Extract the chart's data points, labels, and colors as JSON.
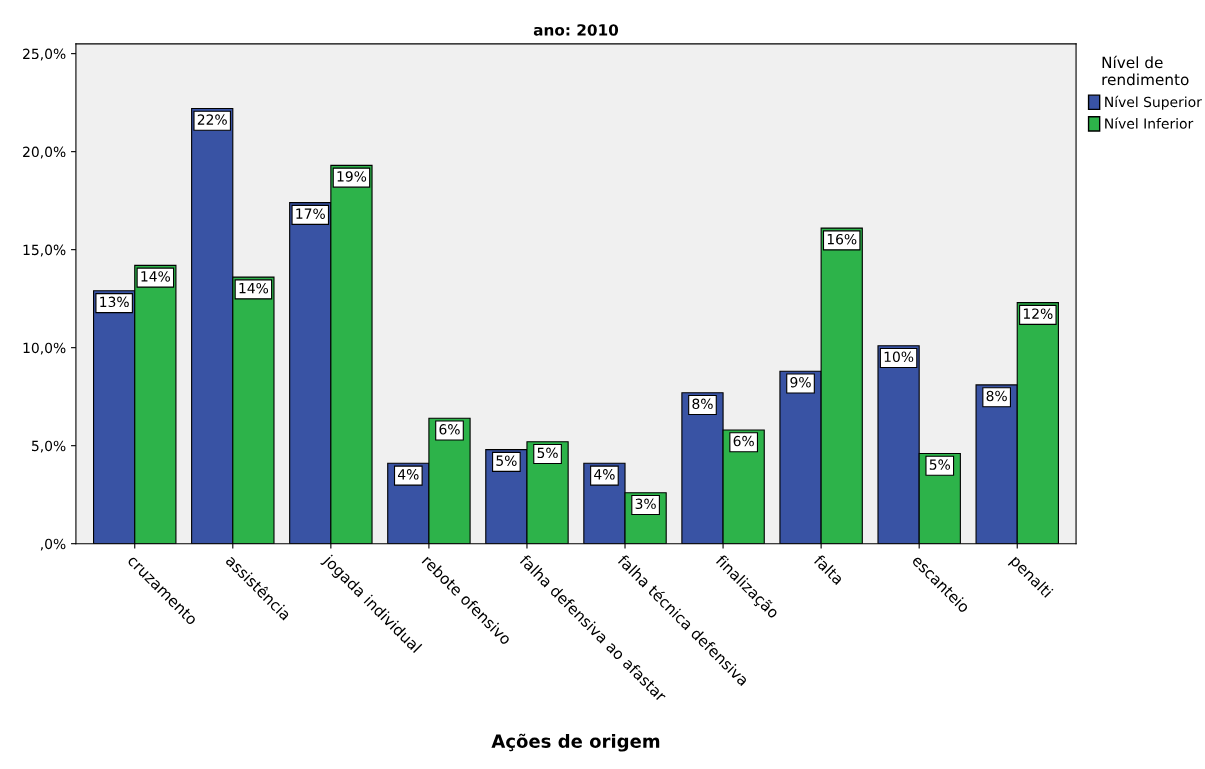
{
  "chart_data": {
    "type": "bar",
    "title": "ano: 2010",
    "xlabel": "Ações de origem",
    "legend_title": "Nível de\nrendimento",
    "legend": "top right",
    "categories": [
      "cruzamento",
      "assistência",
      "jogada individual",
      "rebote ofensivo",
      "falha defensiva ao afastar",
      "falha técnica defensiva",
      "finalização",
      "falta",
      "escanteio",
      "penalti"
    ],
    "series": [
      {
        "name": "Nível Superior",
        "color": "#3953a4",
        "values": [
          12.9,
          22.2,
          17.4,
          4.1,
          4.8,
          4.1,
          7.7,
          8.8,
          10.1,
          8.1
        ],
        "value_labels": [
          "13%",
          "22%",
          "17%",
          "4%",
          "5%",
          "4%",
          "8%",
          "9%",
          "10%",
          "8%"
        ]
      },
      {
        "name": "Nível Inferior",
        "color": "#2db34a",
        "values": [
          14.2,
          13.6,
          19.3,
          6.4,
          5.2,
          2.6,
          5.8,
          16.1,
          4.6,
          12.3
        ],
        "value_labels": [
          "14%",
          "14%",
          "19%",
          "6%",
          "5%",
          "3%",
          "6%",
          "16%",
          "5%",
          "12%"
        ]
      }
    ],
    "ylim": [
      0,
      25.5
    ],
    "yticks": [
      {
        "value": 0,
        "label": ",0%"
      },
      {
        "value": 5,
        "label": "5,0%"
      },
      {
        "value": 10,
        "label": "10,0%"
      },
      {
        "value": 15,
        "label": "15,0%"
      },
      {
        "value": 20,
        "label": "20,0%"
      },
      {
        "value": 25,
        "label": "25,0%"
      }
    ],
    "grid": false
  }
}
